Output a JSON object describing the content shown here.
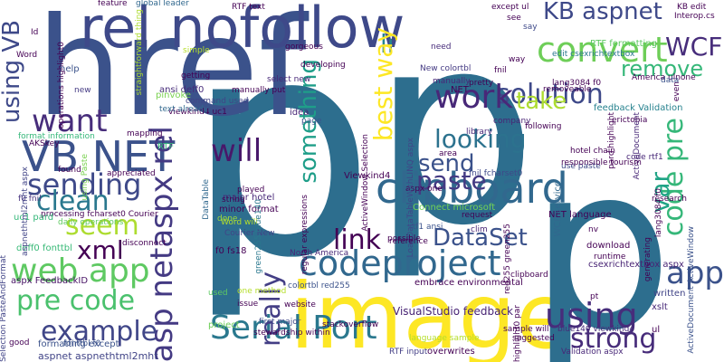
{
  "words": [
    {
      "text": "p",
      "color": "#2d6e8e"
    },
    {
      "text": "p",
      "color": "#2d6e8e"
    },
    {
      "text": "href",
      "color": "#3b528b"
    },
    {
      "text": "image",
      "color": "#fde725"
    },
    {
      "text": "rel nofollow",
      "color": "#3e4989"
    },
    {
      "text": "p",
      "color": "#2d6e8e"
    },
    {
      "text": "clipboard",
      "color": "#31688e"
    },
    {
      "text": "codeproject",
      "color": "#31688e"
    },
    {
      "text": "Serial Port",
      "color": "#2a788e"
    },
    {
      "text": "web app",
      "color": "#5ec962"
    },
    {
      "text": "VB NET",
      "color": "#3b528b"
    },
    {
      "text": "asp netaspx rel",
      "color": "#443a83"
    },
    {
      "text": "convert",
      "color": "#6ece58"
    },
    {
      "text": "solution",
      "color": "#3e4989"
    },
    {
      "text": "work",
      "color": "#482878"
    },
    {
      "text": "want",
      "color": "#472d7b"
    },
    {
      "text": "example",
      "color": "#404688"
    },
    {
      "text": "pre code",
      "color": "#4ac16d"
    },
    {
      "text": "strong",
      "color": "#472c7a"
    },
    {
      "text": "using",
      "color": "#472d7b"
    },
    {
      "text": "app",
      "color": "#3b528b"
    },
    {
      "text": "link",
      "color": "#440154"
    },
    {
      "text": "DataSet",
      "color": "#3b528b"
    },
    {
      "text": "will",
      "color": "#48186a"
    },
    {
      "text": "really",
      "color": "#433e85"
    },
    {
      "text": "something",
      "color": "#1f9e89"
    },
    {
      "text": "looking",
      "color": "#2c728e"
    },
    {
      "text": "paste",
      "color": "#443a83"
    },
    {
      "text": "send",
      "color": "#3b528b"
    },
    {
      "text": "sending",
      "color": "#3e4989"
    },
    {
      "text": "seem",
      "color": "#addc30"
    },
    {
      "text": "clean",
      "color": "#2a788e"
    },
    {
      "text": "xml",
      "color": "#440154"
    },
    {
      "text": "WCF",
      "color": "#472d7b"
    },
    {
      "text": "remove",
      "color": "#35b779"
    },
    {
      "text": "take",
      "color": "#addc30"
    },
    {
      "text": "li",
      "color": "#25848e"
    },
    {
      "text": "KB aspnet",
      "color": "#3e4989"
    },
    {
      "text": "code pre",
      "color": "#35b779"
    },
    {
      "text": "var",
      "color": "#20a486"
    },
    {
      "text": "using VB",
      "color": "#3e4989"
    },
    {
      "text": "best way",
      "color": "#fde725"
    },
    {
      "text": "VisualStudio feedback",
      "color": "#482475"
    },
    {
      "text": "csexrichtextbox aspx",
      "color": "#482475"
    },
    {
      "text": "aspnet aspnethtml2mht",
      "color": "#414487"
    },
    {
      "text": "aspx FeedbackID",
      "color": "#471365"
    },
    {
      "text": "ansi deff0",
      "color": "#472c7a"
    },
    {
      "text": "command used",
      "color": "#414487"
    },
    {
      "text": "viewkind4 uc1",
      "color": "#440154"
    },
    {
      "text": "select new",
      "color": "#482878"
    },
    {
      "text": "manually put",
      "color": "#440154"
    },
    {
      "text": "text already",
      "color": "#31688e"
    },
    {
      "text": "pinvoke",
      "color": "#7ad151"
    },
    {
      "text": "simple",
      "color": "#b5de2b"
    },
    {
      "text": "global leader",
      "color": "#31688e"
    },
    {
      "text": "RTF text",
      "color": "#440154"
    },
    {
      "text": "KB edit",
      "color": "#440154"
    },
    {
      "text": "NET language",
      "color": "#440154"
    },
    {
      "text": "use paste",
      "color": "#3e4989"
    },
    {
      "text": "code rtf1",
      "color": "#482878"
    },
    {
      "text": "erictobia",
      "color": "#440154"
    },
    {
      "text": "feedback Validation",
      "color": "#26828e"
    },
    {
      "text": "edit csexrichtextbox",
      "color": "#2a788e"
    },
    {
      "text": "need",
      "color": "#472c7a"
    },
    {
      "text": "manually",
      "color": "#482878"
    },
    {
      "text": "New colortbl",
      "color": "#443a83"
    },
    {
      "text": "NET",
      "color": "#440154"
    },
    {
      "text": "company",
      "color": "#482475"
    },
    {
      "text": "formatting except",
      "color": "#3b528b"
    },
    {
      "text": "Word will",
      "color": "#b5de2b"
    },
    {
      "text": "Courier New",
      "color": "#414487"
    },
    {
      "text": "minor format",
      "color": "#440154"
    },
    {
      "text": "major hotel",
      "color": "#482878"
    },
    {
      "text": "f0 fs18",
      "color": "#440154"
    },
    {
      "text": "done",
      "color": "#9fda3a"
    },
    {
      "text": "string",
      "color": "#440154"
    },
    {
      "text": "green255 blue140",
      "color": "#2a788e"
    },
    {
      "text": "aspx one",
      "color": "#440154"
    },
    {
      "text": "fnil fcharset0",
      "color": "#3e4989"
    },
    {
      "text": "Connect microsoft",
      "color": "#73d056"
    },
    {
      "text": "download",
      "color": "#440154"
    },
    {
      "text": "runtime",
      "color": "#440154"
    },
    {
      "text": "Validation aspx",
      "color": "#482878"
    },
    {
      "text": "blue140 viewkind4",
      "color": "#472c7a"
    },
    {
      "text": "xslt",
      "color": "#482878"
    },
    {
      "text": "written",
      "color": "#414487"
    },
    {
      "text": "ul",
      "color": "#440154"
    },
    {
      "text": "colortbl red255",
      "color": "#3b528b"
    },
    {
      "text": "one method",
      "color": "#b5de2b"
    },
    {
      "text": "used",
      "color": "#5ec962"
    },
    {
      "text": "project",
      "color": "#6ece58"
    },
    {
      "text": "RTF input",
      "color": "#433e85"
    },
    {
      "text": "overwrites",
      "color": "#440154"
    },
    {
      "text": "good",
      "color": "#440154"
    },
    {
      "text": "fonttbl f0",
      "color": "#3b528b"
    },
    {
      "text": "deff0 fonttbl",
      "color": "#38b977"
    },
    {
      "text": "processing fcharset0 Courier",
      "color": "#440154"
    },
    {
      "text": "uc1 pard",
      "color": "#35b779"
    },
    {
      "text": "f0 fnil",
      "color": "#46327e"
    },
    {
      "text": "found",
      "color": "#440154"
    },
    {
      "text": "format information",
      "color": "#35b779"
    },
    {
      "text": "help",
      "color": "#3b528b"
    },
    {
      "text": "new",
      "color": "#443a83"
    },
    {
      "text": "Word",
      "color": "#440154"
    },
    {
      "text": "Id",
      "color": "#440154"
    },
    {
      "text": "stewardship within",
      "color": "#440154"
    },
    {
      "text": "first major",
      "color": "#3e4989"
    },
    {
      "text": "page",
      "color": "#3b528b"
    },
    {
      "text": "idea",
      "color": "#482878"
    },
    {
      "text": "ActiveWindow Selection",
      "color": "#440154"
    },
    {
      "text": "LoadDataTableWithLINQ aspx",
      "color": "#404688"
    },
    {
      "text": "embrace environmental",
      "color": "#440154"
    },
    {
      "text": "rtf1 ansi",
      "color": "#3b528b"
    },
    {
      "text": "red255 green255",
      "color": "#440154"
    },
    {
      "text": "North America",
      "color": "#482878"
    },
    {
      "text": "America ulnone",
      "color": "#440154"
    },
    {
      "text": "lang3084 f0",
      "color": "#440154"
    },
    {
      "text": "even",
      "color": "#440154"
    },
    {
      "text": "data",
      "color": "#3b528b"
    },
    {
      "text": "see",
      "color": "#440154"
    },
    {
      "text": "say",
      "color": "#3e4989"
    },
    {
      "text": "except ul",
      "color": "#440154"
    },
    {
      "text": "way",
      "color": "#440154"
    },
    {
      "text": "RTF formatting",
      "color": "#5ec962"
    },
    {
      "text": "mapping",
      "color": "#440154"
    },
    {
      "text": "hotel chain",
      "color": "#440154"
    },
    {
      "text": "WCF service",
      "color": "#31688e"
    },
    {
      "text": "using Paste",
      "color": "#7ad151"
    },
    {
      "text": "feature",
      "color": "#440154"
    },
    {
      "text": "straightforward thing",
      "color": "#addc30"
    },
    {
      "text": "aspnethtml2mht aspx",
      "color": "#414487"
    },
    {
      "text": "Selection PasteAndFormat",
      "color": "#414487"
    },
    {
      "text": "operations highlight0",
      "color": "#440154"
    },
    {
      "text": "daily operations",
      "color": "#5ec962"
    },
    {
      "text": "RTF",
      "color": "#35b779"
    },
    {
      "text": "DataTable",
      "color": "#31688e"
    },
    {
      "text": "request",
      "color": "#440154"
    },
    {
      "text": "clim",
      "color": "#482475"
    },
    {
      "text": "ActiveDocument ActiveWindow",
      "color": "#3b528b"
    },
    {
      "text": "pard highlight",
      "color": "#440154"
    },
    {
      "text": "lang3084 f0",
      "color": "#440154"
    },
    {
      "text": "highlight0 par",
      "color": "#440154"
    },
    {
      "text": "sample will",
      "color": "#440154"
    },
    {
      "text": "suggested",
      "color": "#440154"
    },
    {
      "text": "language sample",
      "color": "#b5de2b"
    },
    {
      "text": "pt",
      "color": "#440154"
    },
    {
      "text": "research",
      "color": "#440154"
    },
    {
      "text": "generating",
      "color": "#440154"
    },
    {
      "text": "removeable",
      "color": "#440154"
    },
    {
      "text": "ActiveDocument",
      "color": "#482878"
    },
    {
      "text": "nv",
      "color": "#440154"
    },
    {
      "text": "Interop.cs",
      "color": "#440154"
    },
    {
      "text": "library",
      "color": "#482878"
    },
    {
      "text": "following",
      "color": "#440154"
    },
    {
      "text": "responsible tourism",
      "color": "#440154"
    },
    {
      "text": "appreciated",
      "color": "#440154"
    },
    {
      "text": "AKSkey",
      "color": "#440154"
    },
    {
      "text": "regular expressions",
      "color": "#440154"
    },
    {
      "text": "disconnect",
      "color": "#440154"
    },
    {
      "text": "gorgeous",
      "color": "#440154"
    },
    {
      "text": "developing",
      "color": "#440154"
    },
    {
      "text": "area",
      "color": "#440154"
    },
    {
      "text": "stackoverflow",
      "color": "#440154"
    },
    {
      "text": "possible",
      "color": "#440154"
    },
    {
      "text": "clipboard",
      "color": "#440154"
    },
    {
      "text": "website",
      "color": "#440154"
    },
    {
      "text": "issue",
      "color": "#440154"
    },
    {
      "text": "played",
      "color": "#440154"
    },
    {
      "text": "getting",
      "color": "#440154"
    },
    {
      "text": "pretty",
      "color": "#440154"
    },
    {
      "text": "reference",
      "color": "#440154"
    },
    {
      "text": "fnil",
      "color": "#440154"
    },
    {
      "text": "Viewkind4",
      "color": "#440154"
    }
  ]
}
